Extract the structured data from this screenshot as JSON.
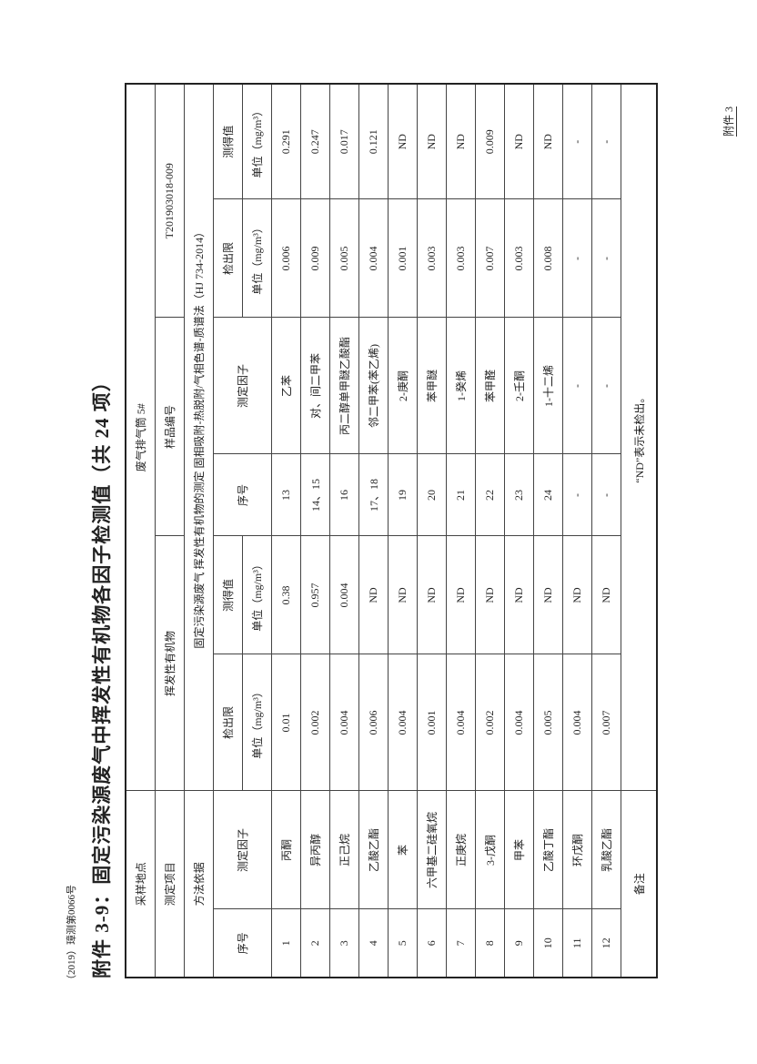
{
  "doc_number": "（2019）璋测第0066号",
  "annex_label": "附件 3",
  "title": "附件 3-9：固定污染源废气中挥发性有机物各因子检测值（共 24 项）",
  "header": {
    "site_label": "采样地点",
    "site_value": "废气排气筒 5#",
    "item_label": "测定项目",
    "item_value": "挥发性有机物",
    "sample_no_label": "样品编号",
    "sample_no_value": "T201903018-009",
    "method_label": "方法依据",
    "method_value": "固定污染源废气 挥发性有机物的测定 固相吸附-热脱附/气相色谱-质谱法（HJ 734-2014）"
  },
  "columns": {
    "no": "序号",
    "factor": "测定因子",
    "limit": "检出限",
    "value": "测得值",
    "unit": "单位（mg/m³）"
  },
  "rows": [
    {
      "l": [
        "1",
        "丙酮",
        "0.01",
        "0.38"
      ],
      "r": [
        "13",
        "乙苯",
        "0.006",
        "0.291"
      ]
    },
    {
      "l": [
        "2",
        "异丙醇",
        "0.002",
        "0.957"
      ],
      "r": [
        "14、15",
        "对、间二甲苯",
        "0.009",
        "0.247"
      ]
    },
    {
      "l": [
        "3",
        "正己烷",
        "0.004",
        "0.004"
      ],
      "r": [
        "16",
        "丙二醇单甲醚乙酸酯",
        "0.005",
        "0.017"
      ]
    },
    {
      "l": [
        "4",
        "乙酸乙酯",
        "0.006",
        "ND"
      ],
      "r": [
        "17、18",
        "邻二甲苯(苯乙烯)",
        "0.004",
        "0.121"
      ]
    },
    {
      "l": [
        "5",
        "苯",
        "0.004",
        "ND"
      ],
      "r": [
        "19",
        "2-庚酮",
        "0.001",
        "ND"
      ]
    },
    {
      "l": [
        "6",
        "六甲基二硅氧烷",
        "0.001",
        "ND"
      ],
      "r": [
        "20",
        "苯甲醚",
        "0.003",
        "ND"
      ]
    },
    {
      "l": [
        "7",
        "正庚烷",
        "0.004",
        "ND"
      ],
      "r": [
        "21",
        "1-癸烯",
        "0.003",
        "ND"
      ]
    },
    {
      "l": [
        "8",
        "3-戊酮",
        "0.002",
        "ND"
      ],
      "r": [
        "22",
        "苯甲醛",
        "0.007",
        "0.009"
      ]
    },
    {
      "l": [
        "9",
        "甲苯",
        "0.004",
        "ND"
      ],
      "r": [
        "23",
        "2-壬酮",
        "0.003",
        "ND"
      ]
    },
    {
      "l": [
        "10",
        "乙酸丁酯",
        "0.005",
        "ND"
      ],
      "r": [
        "24",
        "1-十二烯",
        "0.008",
        "ND"
      ]
    },
    {
      "l": [
        "11",
        "环戊酮",
        "0.004",
        "ND"
      ],
      "r": [
        "-",
        "-",
        "-",
        "-"
      ]
    },
    {
      "l": [
        "12",
        "乳酸乙酯",
        "0.007",
        "ND"
      ],
      "r": [
        "-",
        "-",
        "-",
        "-"
      ]
    }
  ],
  "remarks_label": "备注",
  "remarks_value": "“ND”表示未检出。"
}
